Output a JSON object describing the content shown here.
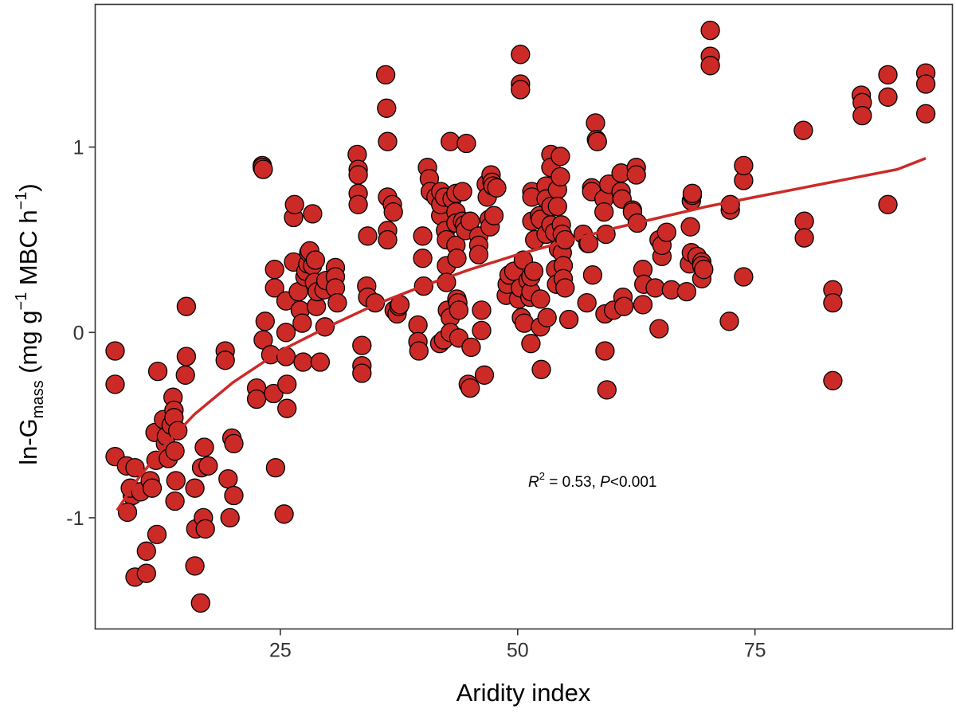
{
  "chart_data": {
    "type": "scatter",
    "xlabel": "Aridity index",
    "ylabel": {
      "prefix": "ln-G",
      "subscript": "mass",
      "middle": " (mg g",
      "sup1": "−1",
      "middle2": " MBC h",
      "sup2": "−1",
      "suffix": ")"
    },
    "xlim": [
      5.5,
      95.8
    ],
    "ylim": [
      -1.6,
      1.77
    ],
    "x_ticks": [
      25,
      50,
      75
    ],
    "y_ticks": [
      -1,
      0,
      1
    ],
    "y_tick_labels": [
      "-1",
      "0",
      "1"
    ],
    "grid": false,
    "annotation": {
      "r_symbol": "R",
      "r_exp": "2",
      "text1": " = 0.53, ",
      "p_symbol": "P",
      "text2": "<0.001"
    },
    "colors": {
      "points": "#CC2A27",
      "point_edge": "#000000",
      "fit": "#CC2A27",
      "axes": "#333333"
    },
    "fit": {
      "form": "y = a + b*ln(x)",
      "x": [
        7.8,
        10,
        13,
        16,
        20,
        25,
        30,
        35,
        40,
        45,
        50,
        55,
        60,
        65,
        70,
        75,
        80,
        85,
        90,
        93
      ],
      "y": [
        -0.96,
        -0.79,
        -0.6,
        -0.44,
        -0.27,
        -0.1,
        0.03,
        0.15,
        0.25,
        0.34,
        0.42,
        0.49,
        0.56,
        0.62,
        0.68,
        0.73,
        0.78,
        0.83,
        0.88,
        0.94
      ]
    },
    "series": [
      {
        "points": [
          [
            7.6,
            -0.1
          ],
          [
            7.6,
            -0.28
          ],
          [
            7.6,
            -0.67
          ],
          [
            8.8,
            -0.72
          ],
          [
            9.4,
            -0.88
          ],
          [
            8.9,
            -0.97
          ],
          [
            9.2,
            -0.84
          ],
          [
            9.7,
            -0.73
          ],
          [
            9.7,
            -1.32
          ],
          [
            10.9,
            -1.3
          ],
          [
            10.9,
            -1.18
          ],
          [
            10.3,
            -0.86
          ],
          [
            11.3,
            -0.8
          ],
          [
            11.5,
            -0.84
          ],
          [
            12,
            -1.09
          ],
          [
            11.8,
            -0.54
          ],
          [
            11.9,
            -0.69
          ],
          [
            12.1,
            -0.21
          ],
          [
            12.7,
            -0.47
          ],
          [
            12.9,
            -0.6
          ],
          [
            13.2,
            -0.68
          ],
          [
            13,
            -0.56
          ],
          [
            13.5,
            -0.5
          ],
          [
            13.7,
            -0.35
          ],
          [
            13.8,
            -0.42
          ],
          [
            13.8,
            -0.46
          ],
          [
            13.9,
            -0.64
          ],
          [
            14,
            -0.8
          ],
          [
            13.9,
            -0.91
          ],
          [
            14.2,
            -0.53
          ],
          [
            15.1,
            0.14
          ],
          [
            15.1,
            -0.13
          ],
          [
            15,
            -0.23
          ],
          [
            16,
            -0.84
          ],
          [
            16.1,
            -1.06
          ],
          [
            16,
            -1.26
          ],
          [
            16.6,
            -1.46
          ],
          [
            16.7,
            -0.73
          ],
          [
            17,
            -0.62
          ],
          [
            16.9,
            -1.0
          ],
          [
            17.1,
            -1.06
          ],
          [
            17.4,
            -0.72
          ],
          [
            19.2,
            -0.1
          ],
          [
            19.2,
            -0.15
          ],
          [
            19.5,
            -0.79
          ],
          [
            19.7,
            -1.0
          ],
          [
            19.9,
            -0.57
          ],
          [
            20.1,
            -0.6
          ],
          [
            20.1,
            -0.88
          ],
          [
            23.1,
            0.9
          ],
          [
            23.1,
            0.89
          ],
          [
            23.2,
            0.88
          ],
          [
            22.5,
            -0.3
          ],
          [
            22.5,
            -0.36
          ],
          [
            23.4,
            0.06
          ],
          [
            23.2,
            -0.04
          ],
          [
            24,
            -0.12
          ],
          [
            24.3,
            -0.33
          ],
          [
            24.4,
            0.34
          ],
          [
            24.4,
            0.24
          ],
          [
            24.5,
            -0.73
          ],
          [
            25.4,
            -0.98
          ],
          [
            25.6,
            0.17
          ],
          [
            25.6,
            0.0
          ],
          [
            25.6,
            -0.13
          ],
          [
            25.7,
            -0.28
          ],
          [
            25.7,
            -0.41
          ],
          [
            26.4,
            0.62
          ],
          [
            26.5,
            0.69
          ],
          [
            26.4,
            0.38
          ],
          [
            26.9,
            0.22
          ],
          [
            27.1,
            0.12
          ],
          [
            27.3,
            0.05
          ],
          [
            27.4,
            -0.16
          ],
          [
            27.6,
            0.3
          ],
          [
            27.7,
            0.33
          ],
          [
            27.9,
            0.37
          ],
          [
            28,
            0.43
          ],
          [
            28.1,
            0.44
          ],
          [
            28.4,
            0.64
          ],
          [
            28.4,
            0.36
          ],
          [
            28.6,
            0.27
          ],
          [
            28.7,
            0.39
          ],
          [
            28.8,
            0.14
          ],
          [
            28.9,
            0.22
          ],
          [
            29.2,
            -0.16
          ],
          [
            29.6,
            0.23
          ],
          [
            29.7,
            0.03
          ],
          [
            29.8,
            0.28
          ],
          [
            30.8,
            0.35
          ],
          [
            30.8,
            0.3
          ],
          [
            30.8,
            0.24
          ],
          [
            31,
            0.16
          ],
          [
            33.1,
            0.96
          ],
          [
            33.2,
            0.88
          ],
          [
            33.2,
            0.85
          ],
          [
            33.2,
            0.75
          ],
          [
            33.2,
            0.69
          ],
          [
            33.6,
            -0.07
          ],
          [
            33.6,
            -0.18
          ],
          [
            33.6,
            -0.22
          ],
          [
            34.1,
            0.25
          ],
          [
            34.2,
            0.19
          ],
          [
            34.2,
            0.52
          ],
          [
            35,
            0.16
          ],
          [
            36.1,
            1.39
          ],
          [
            36.2,
            1.21
          ],
          [
            36.3,
            1.03
          ],
          [
            36.3,
            0.73
          ],
          [
            36.3,
            0.55
          ],
          [
            36.3,
            0.5
          ],
          [
            36.8,
            0.69
          ],
          [
            36.9,
            0.65
          ],
          [
            37,
            0.12
          ],
          [
            37.3,
            0.1
          ],
          [
            37.5,
            0.14
          ],
          [
            37.6,
            0.15
          ],
          [
            39.5,
            0.04
          ],
          [
            39.5,
            -0.05
          ],
          [
            39.6,
            -0.1
          ],
          [
            40,
            0.52
          ],
          [
            40,
            0.4
          ],
          [
            40.1,
            0.25
          ],
          [
            40.5,
            0.89
          ],
          [
            40.7,
            0.83
          ],
          [
            40.8,
            0.76
          ],
          [
            41.4,
            0.73
          ],
          [
            41.9,
            0.63
          ],
          [
            41.9,
            0.69
          ],
          [
            41.8,
            -0.06
          ],
          [
            41.9,
            0.76
          ],
          [
            42.2,
            -0.04
          ],
          [
            42.3,
            0.73
          ],
          [
            42.4,
            0.55
          ],
          [
            42.5,
            0.5
          ],
          [
            42.5,
            0.36
          ],
          [
            42.5,
            0.27
          ],
          [
            42.6,
            0.12
          ],
          [
            42.9,
            1.03
          ],
          [
            42.9,
            0.08
          ],
          [
            42.9,
            0.0
          ],
          [
            43.1,
            0.72
          ],
          [
            43.5,
            0.75
          ],
          [
            43.5,
            0.65
          ],
          [
            43.5,
            0.59
          ],
          [
            43.5,
            0.47
          ],
          [
            43.6,
            0.4
          ],
          [
            43.6,
            0.18
          ],
          [
            43.7,
            0.16
          ],
          [
            43.8,
            0.12
          ],
          [
            43.8,
            -0.03
          ],
          [
            44.2,
            0.76
          ],
          [
            44.2,
            0.6
          ],
          [
            44.4,
            0.58
          ],
          [
            44.5,
            0.55
          ],
          [
            44.6,
            1.02
          ],
          [
            44.8,
            -0.28
          ],
          [
            45,
            0.6
          ],
          [
            45,
            -0.3
          ],
          [
            45.1,
            -0.08
          ],
          [
            45.9,
            0.52
          ],
          [
            45.9,
            0.47
          ],
          [
            45.9,
            0.42
          ],
          [
            46.2,
            0.12
          ],
          [
            46.2,
            0.01
          ],
          [
            46.5,
            -0.23
          ],
          [
            46.7,
            0.8
          ],
          [
            46.8,
            0.73
          ],
          [
            47,
            0.61
          ],
          [
            47.1,
            0.57
          ],
          [
            47.2,
            0.85
          ],
          [
            47.3,
            0.81
          ],
          [
            47.4,
            0.79
          ],
          [
            47.5,
            0.63
          ],
          [
            47.8,
            0.78
          ],
          [
            48.8,
            0.2
          ],
          [
            48.9,
            0.26
          ],
          [
            49.1,
            0.31
          ],
          [
            49.6,
            0.33
          ],
          [
            50.1,
            0.18
          ],
          [
            50.3,
            1.5
          ],
          [
            50.3,
            1.34
          ],
          [
            50.3,
            1.31
          ],
          [
            50.3,
            0.24
          ],
          [
            50.4,
            0.08
          ],
          [
            50.6,
            0.39
          ],
          [
            50.7,
            0.05
          ],
          [
            51.1,
            0.28
          ],
          [
            51.3,
            0.19
          ],
          [
            51.4,
            0.22
          ],
          [
            51.4,
            -0.06
          ],
          [
            51.4,
            0.3
          ],
          [
            51.7,
            0.33
          ],
          [
            51.5,
            0.76
          ],
          [
            51.5,
            0.73
          ],
          [
            51.5,
            0.6
          ],
          [
            51.8,
            0.5
          ],
          [
            52.3,
            0.63
          ],
          [
            52.4,
            0.61
          ],
          [
            52.4,
            0.18
          ],
          [
            52.4,
            0.03
          ],
          [
            52.5,
            -0.2
          ],
          [
            53,
            0.79
          ],
          [
            53,
            0.72
          ],
          [
            53,
            0.53
          ],
          [
            53.1,
            0.08
          ],
          [
            53.5,
            0.96
          ],
          [
            53.5,
            0.89
          ],
          [
            53.5,
            0.68
          ],
          [
            53.5,
            0.58
          ],
          [
            53.9,
            0.54
          ],
          [
            54,
            0.34
          ],
          [
            54.1,
            0.26
          ],
          [
            54.2,
            0.77
          ],
          [
            54.2,
            0.68
          ],
          [
            54.3,
            0.45
          ],
          [
            54.5,
            0.95
          ],
          [
            54.5,
            0.84
          ],
          [
            54.6,
            0.58
          ],
          [
            54.7,
            0.53
          ],
          [
            54.7,
            0.43
          ],
          [
            54.8,
            0.36
          ],
          [
            54.8,
            0.29
          ],
          [
            55,
            0.5
          ],
          [
            55,
            0.24
          ],
          [
            55.4,
            0.07
          ],
          [
            56.9,
            0.53
          ],
          [
            57.3,
            0.16
          ],
          [
            57.4,
            0.48
          ],
          [
            57.5,
            0.48
          ],
          [
            57.8,
            0.78
          ],
          [
            57.8,
            0.76
          ],
          [
            57.9,
            0.31
          ],
          [
            58.2,
            1.13
          ],
          [
            58.3,
            1.04
          ],
          [
            58.4,
            1.03
          ],
          [
            59.1,
            0.72
          ],
          [
            59.1,
            0.65
          ],
          [
            59.2,
            0.1
          ],
          [
            59.3,
            0.53
          ],
          [
            59.2,
            -0.1
          ],
          [
            59.4,
            -0.31
          ],
          [
            59.6,
            0.8
          ],
          [
            60.1,
            0.12
          ],
          [
            60.9,
            0.86
          ],
          [
            60.9,
            0.76
          ],
          [
            61,
            0.72
          ],
          [
            61.1,
            0.19
          ],
          [
            61.2,
            0.14
          ],
          [
            62.1,
            0.66
          ],
          [
            62.1,
            0.65
          ],
          [
            62.5,
            0.89
          ],
          [
            62.5,
            0.85
          ],
          [
            62.6,
            0.59
          ],
          [
            63.2,
            0.34
          ],
          [
            63.3,
            0.26
          ],
          [
            63.2,
            0.15
          ],
          [
            64.5,
            0.24
          ],
          [
            64.9,
            0.5
          ],
          [
            64.9,
            0.02
          ],
          [
            65.2,
            0.41
          ],
          [
            65.2,
            0.47
          ],
          [
            65.7,
            0.54
          ],
          [
            66.2,
            0.23
          ],
          [
            67.8,
            0.22
          ],
          [
            68.1,
            0.37
          ],
          [
            68.2,
            0.57
          ],
          [
            68.3,
            0.43
          ],
          [
            68.3,
            0.71
          ],
          [
            68.4,
            0.74
          ],
          [
            68.4,
            0.75
          ],
          [
            68.9,
            0.41
          ],
          [
            69.4,
            0.38
          ],
          [
            69.4,
            0.36
          ],
          [
            69.4,
            0.29
          ],
          [
            69.6,
            0.34
          ],
          [
            70.3,
            1.63
          ],
          [
            70.3,
            1.49
          ],
          [
            70.3,
            1.44
          ],
          [
            72.3,
            0.06
          ],
          [
            72.4,
            0.66
          ],
          [
            72.4,
            0.69
          ],
          [
            73.8,
            0.3
          ],
          [
            73.8,
            0.82
          ],
          [
            73.8,
            0.9
          ],
          [
            80.1,
            1.09
          ],
          [
            80.2,
            0.6
          ],
          [
            80.2,
            0.51
          ],
          [
            83.2,
            0.23
          ],
          [
            83.2,
            0.16
          ],
          [
            83.2,
            -0.26
          ],
          [
            86.2,
            1.28
          ],
          [
            86.3,
            1.24
          ],
          [
            86.3,
            1.17
          ],
          [
            89,
            1.39
          ],
          [
            89,
            1.27
          ],
          [
            89,
            0.69
          ],
          [
            93,
            1.4
          ],
          [
            93,
            1.34
          ],
          [
            93,
            1.18
          ]
        ]
      }
    ]
  }
}
